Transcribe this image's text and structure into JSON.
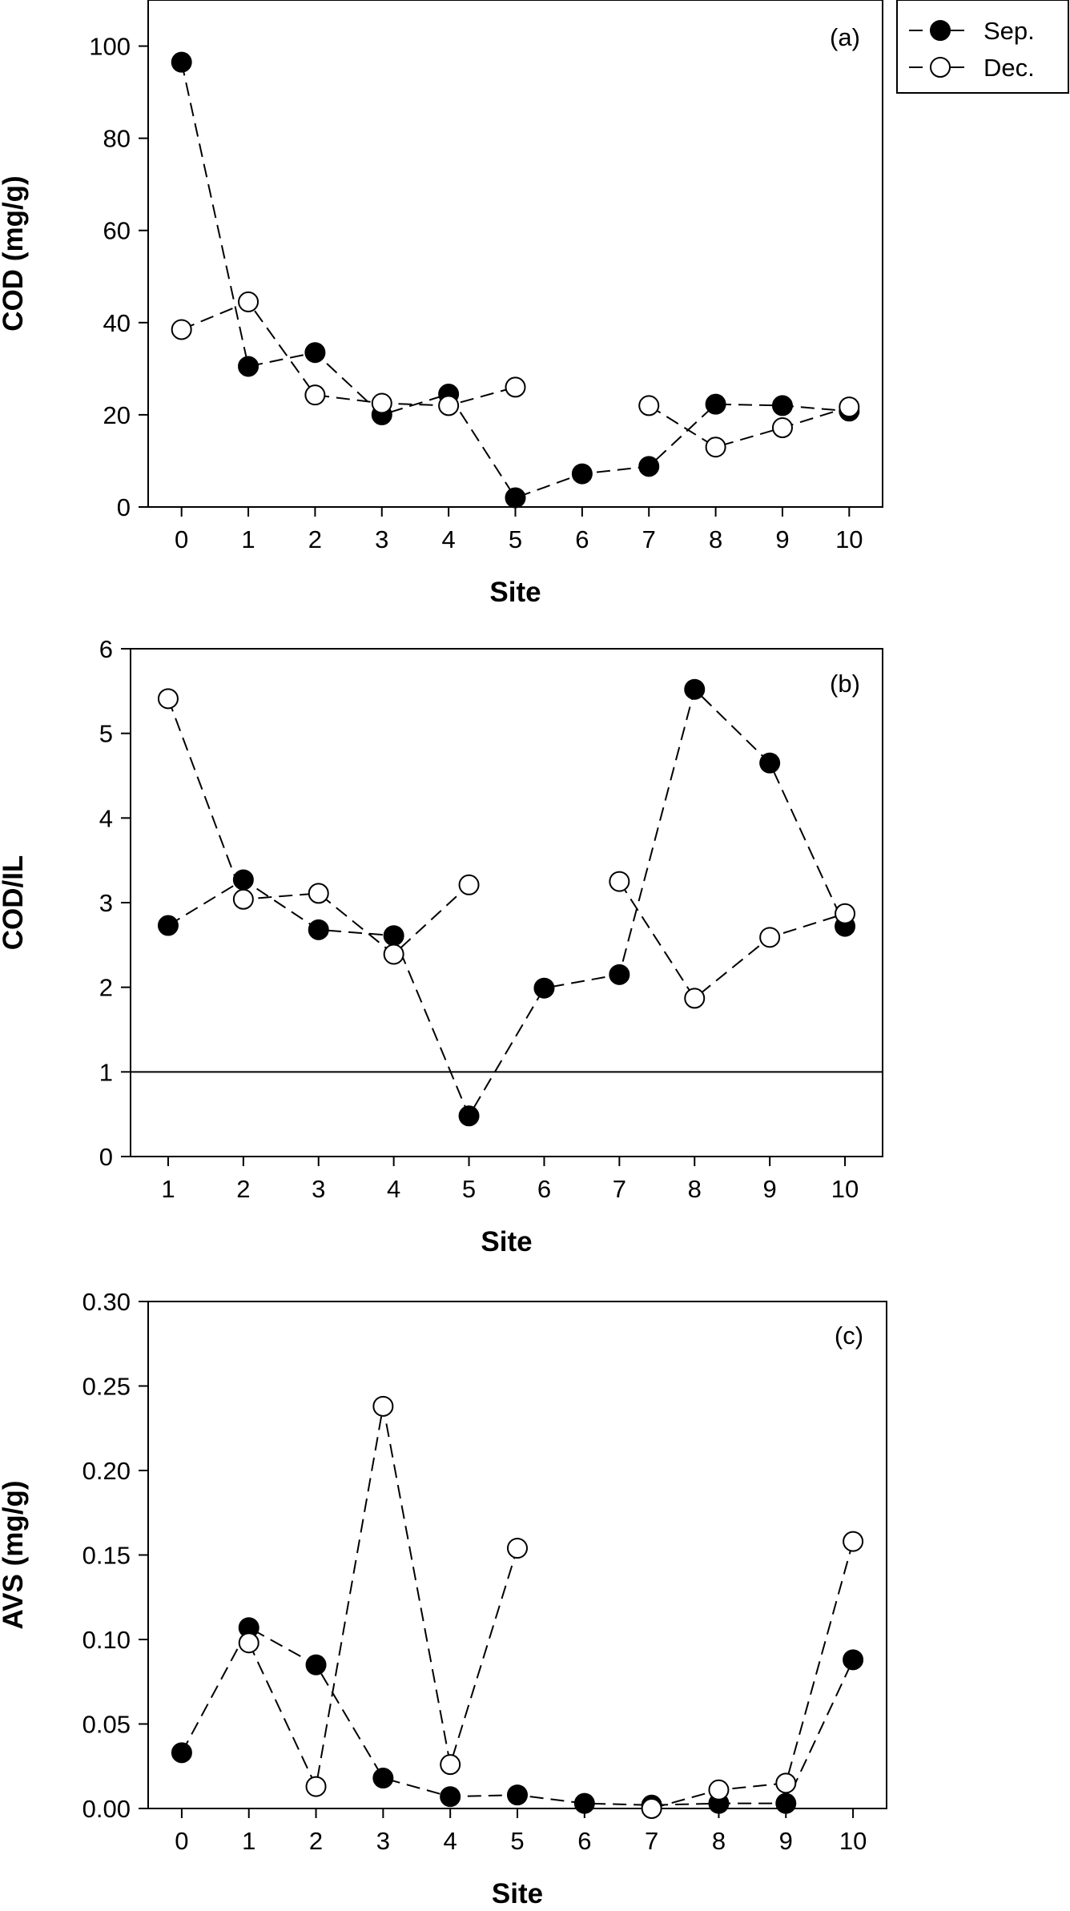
{
  "legend": [
    {
      "name": "Sep.",
      "color": "#000000",
      "marker": "filled-circle"
    },
    {
      "name": "Dec.",
      "color": "#ffffff",
      "marker": "open-circle"
    }
  ],
  "chart_data": [
    {
      "type": "line",
      "panel_label": "(a)",
      "xlabel": "Site",
      "ylabel": "COD (mg/g)",
      "x_ticks": [
        "0",
        "1",
        "2",
        "3",
        "4",
        "5",
        "6",
        "7",
        "8",
        "9",
        "10"
      ],
      "y_ticks": [
        "0",
        "20",
        "40",
        "60",
        "80",
        "100"
      ],
      "xlim": [
        -0.5,
        10.5
      ],
      "ylim": [
        0,
        110
      ],
      "grid": false,
      "legend_position": "outside-top-right",
      "series": [
        {
          "name": "Sep.",
          "marker": "filled-circle",
          "x": [
            0,
            1,
            2,
            3,
            4,
            5,
            6,
            7,
            8,
            9,
            10
          ],
          "y": [
            96.5,
            30.5,
            33.5,
            20,
            24.5,
            2,
            7.2,
            8.8,
            22.3,
            22,
            20.8
          ]
        },
        {
          "name": "Dec.",
          "marker": "open-circle",
          "segments": [
            {
              "x": [
                0,
                1,
                2,
                3,
                4,
                5
              ],
              "y": [
                38.5,
                44.5,
                24.3,
                22.5,
                22,
                26
              ]
            },
            {
              "x": [
                7,
                8,
                9,
                10
              ],
              "y": [
                22,
                13,
                17.2,
                21.7
              ]
            }
          ]
        }
      ]
    },
    {
      "type": "line",
      "panel_label": "(b)",
      "xlabel": "Site",
      "ylabel": "COD/IL",
      "x_ticks": [
        "1",
        "2",
        "3",
        "4",
        "5",
        "6",
        "7",
        "8",
        "9",
        "10"
      ],
      "y_ticks": [
        "0",
        "1",
        "2",
        "3",
        "4",
        "5",
        "6"
      ],
      "xlim": [
        0.5,
        10.5
      ],
      "ylim": [
        0,
        6
      ],
      "grid": false,
      "reference_line": {
        "y": 1
      },
      "series": [
        {
          "name": "Sep.",
          "marker": "filled-circle",
          "x": [
            1,
            2,
            3,
            4,
            5,
            6,
            7,
            8,
            9,
            10
          ],
          "y": [
            2.73,
            3.27,
            2.68,
            2.61,
            0.48,
            1.99,
            2.15,
            5.52,
            4.65,
            2.72
          ]
        },
        {
          "name": "Dec.",
          "marker": "open-circle",
          "segments": [
            {
              "x": [
                1,
                2,
                3,
                4,
                5
              ],
              "y": [
                5.41,
                3.04,
                3.11,
                2.39,
                3.21
              ]
            },
            {
              "x": [
                7,
                8,
                9,
                10
              ],
              "y": [
                3.25,
                1.87,
                2.59,
                2.87
              ]
            }
          ]
        }
      ]
    },
    {
      "type": "line",
      "panel_label": "(c)",
      "xlabel": "Site",
      "ylabel": "AVS (mg/g)",
      "x_ticks": [
        "0",
        "1",
        "2",
        "3",
        "4",
        "5",
        "6",
        "7",
        "8",
        "9",
        "10"
      ],
      "y_ticks": [
        "0.00",
        "0.05",
        "0.10",
        "0.15",
        "0.20",
        "0.25",
        "0.30"
      ],
      "xlim": [
        -0.5,
        10.5
      ],
      "ylim": [
        0,
        0.3
      ],
      "grid": false,
      "series": [
        {
          "name": "Sep.",
          "marker": "filled-circle",
          "x": [
            0,
            1,
            2,
            3,
            4,
            5,
            6,
            7,
            8,
            9,
            10
          ],
          "y": [
            0.033,
            0.107,
            0.085,
            0.018,
            0.007,
            0.008,
            0.003,
            0.002,
            0.003,
            0.003,
            0.088
          ]
        },
        {
          "name": "Dec.",
          "marker": "open-circle",
          "segments": [
            {
              "x": [
                1,
                2,
                3,
                4,
                5
              ],
              "y": [
                0.098,
                0.013,
                0.238,
                0.026,
                0.154
              ]
            },
            {
              "x": [
                7,
                8,
                9,
                10
              ],
              "y": [
                0.0,
                0.011,
                0.015,
                0.158
              ]
            }
          ]
        }
      ]
    }
  ]
}
